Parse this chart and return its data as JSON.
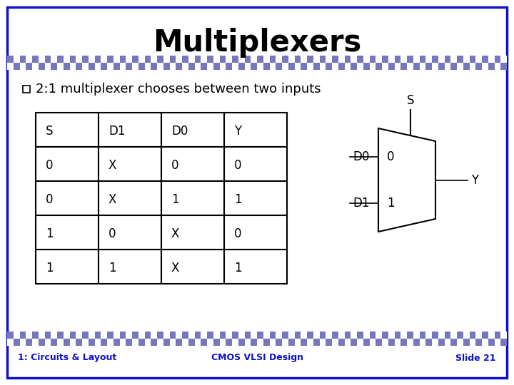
{
  "title": "Multiplexers",
  "subtitle": "2:1 multiplexer chooses between two inputs",
  "table_headers": [
    "S",
    "D1",
    "D0",
    "Y"
  ],
  "table_rows": [
    [
      "0",
      "X",
      "0",
      "0"
    ],
    [
      "0",
      "X",
      "1",
      "1"
    ],
    [
      "1",
      "0",
      "X",
      "0"
    ],
    [
      "1",
      "1",
      "X",
      "1"
    ]
  ],
  "footer_left": "1: Circuits & Layout",
  "footer_center": "CMOS VLSI Design",
  "footer_right": "Slide 21",
  "border_color": "#1111CC",
  "title_color": "#000000",
  "background_color": "#FFFFFF",
  "stripe_color": "#7777BB",
  "title_fontsize": 30,
  "subtitle_fontsize": 13,
  "table_fontsize": 12,
  "mux_fontsize": 12,
  "footer_fontsize": 9
}
